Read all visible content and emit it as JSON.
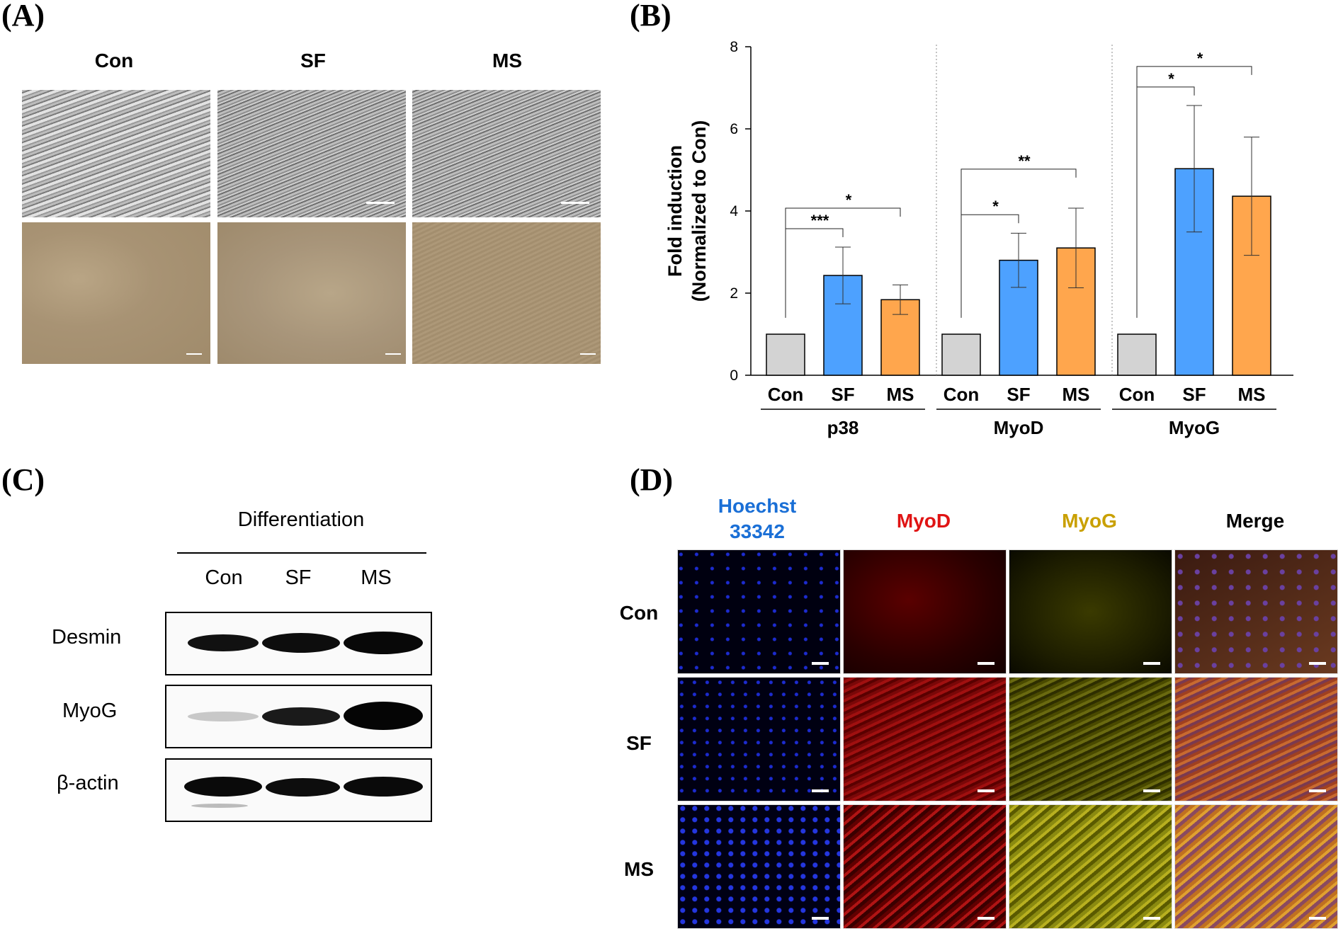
{
  "panels": {
    "A": {
      "letter": "(A)",
      "columns": [
        "Con",
        "SF",
        "MS"
      ]
    },
    "B": {
      "letter": "(B)"
    },
    "C": {
      "letter": "(C)",
      "header": "Differentiation",
      "columns": [
        "Con",
        "SF",
        "MS"
      ],
      "rows": [
        "Desmin",
        "MyoG",
        "β-actin"
      ],
      "band_intensity": {
        "Desmin": [
          0.75,
          0.9,
          1.0
        ],
        "MyoG": [
          0.15,
          0.7,
          1.0
        ],
        "β-actin": [
          0.95,
          0.9,
          0.95
        ]
      }
    },
    "D": {
      "letter": "(D)",
      "channels": [
        {
          "line1": "Hoechst",
          "line2": "33342",
          "color": "#1a6fd6"
        },
        {
          "line1": "MyoD",
          "line2": "",
          "color": "#e01414"
        },
        {
          "line1": "MyoG",
          "line2": "",
          "color": "#c9a000"
        },
        {
          "line1": "Merge",
          "line2": "",
          "color": "#000000"
        }
      ],
      "rows": [
        "Con",
        "SF",
        "MS"
      ]
    }
  },
  "chart_data": {
    "type": "bar",
    "ylabel_line1": "Fold induction",
    "ylabel_line2": "(Normalized to Con)",
    "ylim": [
      0,
      8
    ],
    "yticks": [
      "0",
      "2",
      "4",
      "6",
      "8"
    ],
    "group_labels": [
      "p38",
      "MyoD",
      "MyoG"
    ],
    "categories": [
      "Con",
      "SF",
      "MS"
    ],
    "colors": {
      "Con": "#d3d3d3",
      "SF": "#4da1ff",
      "MS": "#ffa64d"
    },
    "groups": [
      {
        "name": "p38",
        "values": [
          1.0,
          2.43,
          1.84
        ],
        "errors": [
          0,
          0.69,
          0.36
        ],
        "significance": [
          {
            "to": 1,
            "label": "***"
          },
          {
            "to": 2,
            "label": "*"
          }
        ]
      },
      {
        "name": "MyoD",
        "values": [
          1.0,
          2.8,
          3.1
        ],
        "errors": [
          0,
          0.66,
          0.97
        ],
        "significance": [
          {
            "to": 1,
            "label": "*"
          },
          {
            "to": 2,
            "label": "**"
          }
        ]
      },
      {
        "name": "MyoG",
        "values": [
          1.0,
          5.03,
          4.36
        ],
        "errors": [
          0,
          1.54,
          1.44
        ],
        "significance": [
          {
            "to": 1,
            "label": "*"
          },
          {
            "to": 2,
            "label": "*"
          }
        ]
      }
    ]
  }
}
